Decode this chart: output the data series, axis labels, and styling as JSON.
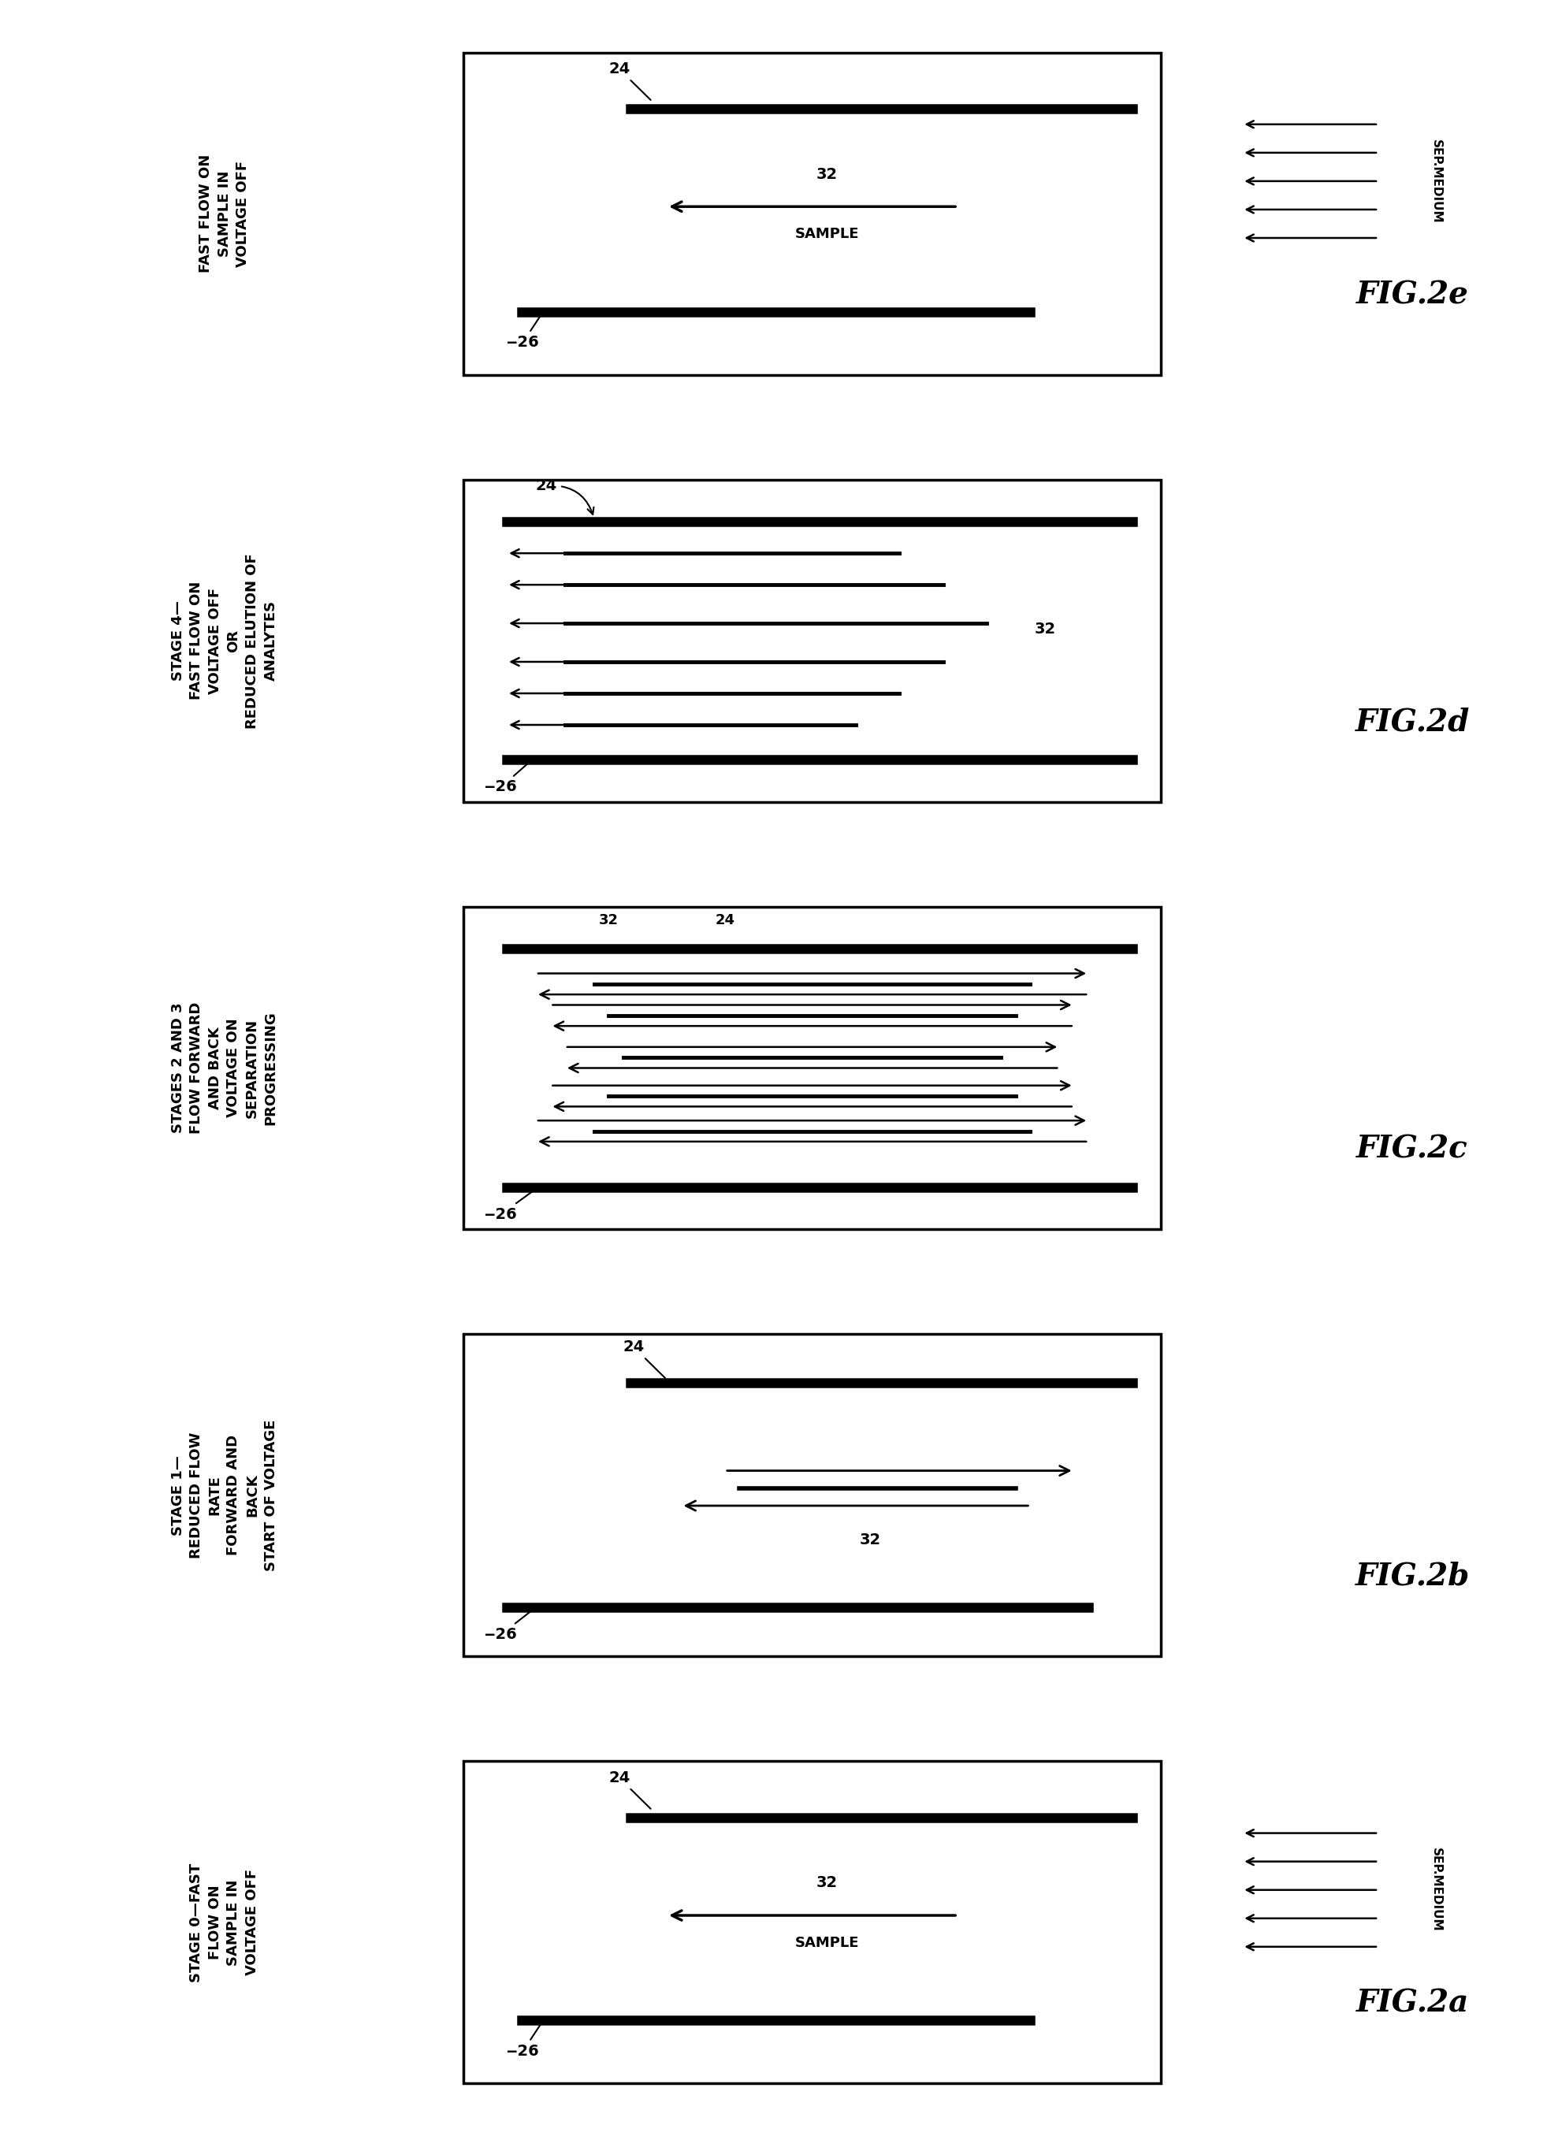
{
  "panels": [
    {
      "label": "FIG.2e",
      "title_lines": [
        "FAST FLOW ON",
        "SAMPLE IN",
        "VOLTAGE OFF"
      ],
      "show_sep_medium": true,
      "content": "sample_in"
    },
    {
      "label": "FIG.2d",
      "title_lines": [
        "STAGE 4—",
        "FAST FLOW ON",
        "VOLTAGE OFF",
        "OR",
        "REDUCED ELUTION OF",
        "ANALYTES"
      ],
      "show_sep_medium": false,
      "content": "elution"
    },
    {
      "label": "FIG.2c",
      "title_lines": [
        "STAGES 2 AND 3",
        "FLOW FORWARD",
        "AND BACK",
        "VOLTAGE ON",
        "SEPARATION",
        "PROGRESSING"
      ],
      "show_sep_medium": false,
      "content": "separation"
    },
    {
      "label": "FIG.2b",
      "title_lines": [
        "STAGE 1—",
        "REDUCED FLOW",
        "RATE",
        "FORWARD AND",
        "BACK",
        "START OF VOLTAGE"
      ],
      "show_sep_medium": false,
      "content": "stage1"
    },
    {
      "label": "FIG.2a",
      "title_lines": [
        "STAGE 0—FAST",
        "FLOW ON",
        "SAMPLE IN",
        "VOLTAGE OFF"
      ],
      "show_sep_medium": true,
      "content": "sample_in"
    }
  ],
  "bg_color": "#ffffff"
}
